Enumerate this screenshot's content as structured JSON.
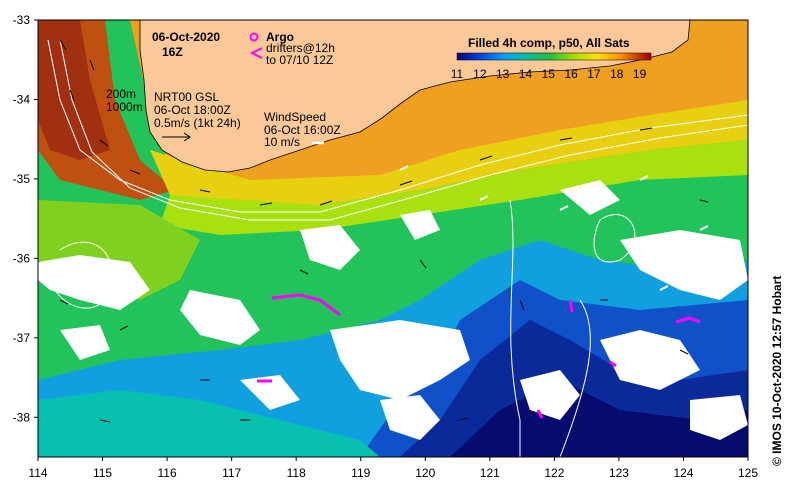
{
  "title": {
    "date": "06-Oct-2020",
    "time": "16Z"
  },
  "legend": {
    "argo_label": "Argo",
    "drifters_line1": "drifters@12h",
    "drifters_line2": "to 07/10 12Z",
    "argo_color": "#ff00ff",
    "drifter_color": "#ff00ff"
  },
  "isobaths": {
    "label_200": "200m",
    "label_1000": "1000m"
  },
  "current": {
    "line1": "NRT00 GSL",
    "line2": "06-Oct 18:00Z",
    "line3": "0.5m/s (1kt 24h)"
  },
  "wind": {
    "line1": "WindSpeed",
    "line2": "06-Oct 16:00Z",
    "line3": "10 m/s"
  },
  "colorbar": {
    "title": "Filled 4h comp, p50, All Sats",
    "ticks": [
      "11",
      "12",
      "13",
      "14",
      "15",
      "16",
      "17",
      "18",
      "19"
    ],
    "range": [
      11,
      19.5
    ]
  },
  "credit": "© IMOS 10-Oct-2020 12:57 Hobart",
  "axes": {
    "x_ticks": [
      "114",
      "115",
      "116",
      "117",
      "118",
      "119",
      "120",
      "121",
      "122",
      "123",
      "124",
      "125"
    ],
    "y_ticks": [
      "-33",
      "-34",
      "-35",
      "-36",
      "-37",
      "-38"
    ],
    "x_range": [
      114,
      125
    ],
    "y_range": [
      -38.5,
      -33
    ]
  },
  "colors": {
    "land": "#fbc998",
    "cloud": "#ffffff",
    "frame": "#000000"
  }
}
